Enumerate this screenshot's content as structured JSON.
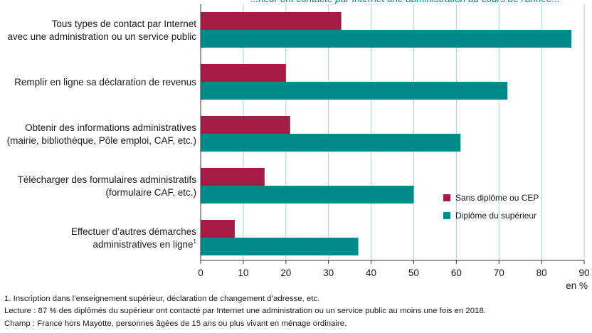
{
  "chart_data": {
    "type": "bar",
    "orientation": "horizontal",
    "title_fragment": "...rieur ont contacté par Internet une administration au cours de l'année...",
    "categories": [
      [
        "Tous types de contact par Internet",
        "avec une administration ou un service public"
      ],
      [
        "Remplir en ligne sa déclaration de revenus"
      ],
      [
        "Obtenir des informations administratives",
        "(mairie, bibliothèque, Pôle emploi, CAF, etc.)"
      ],
      [
        "Télécharger des formulaires administratifs",
        "(formulaire CAF, etc.)"
      ],
      [
        "Effectuer d’autres démarches",
        "administratives en ligne"
      ]
    ],
    "category_superscripts": [
      "",
      "",
      "",
      "",
      "1"
    ],
    "series": [
      {
        "name": "Sans diplôme ou CEP",
        "color": "#a51c45",
        "values": [
          33,
          20,
          21,
          15,
          8
        ]
      },
      {
        "name": "Diplôme du supérieur",
        "color": "#008b8b",
        "values": [
          87,
          72,
          61,
          50,
          37
        ]
      }
    ],
    "xlim": [
      0,
      90
    ],
    "xticks": [
      "0",
      "10",
      "20",
      "30",
      "40",
      "50",
      "60",
      "70",
      "80",
      "90"
    ],
    "xlabel": "en %",
    "grid": "vertical",
    "legend_position": "bottom-right"
  },
  "notes": {
    "footnote": "1. Inscription dans l’enseignement supérieur, déclaration de changement d’adresse, etc.",
    "lecture": "Lecture : 87 % des diplômés du supérieur ont contacté par Internet une administration ou un service public au moins une fois en 2018.",
    "champ": "Champ : France hors Mayotte, personnes âgées de 15 ans ou plus vivant en ménage ordinaire."
  }
}
